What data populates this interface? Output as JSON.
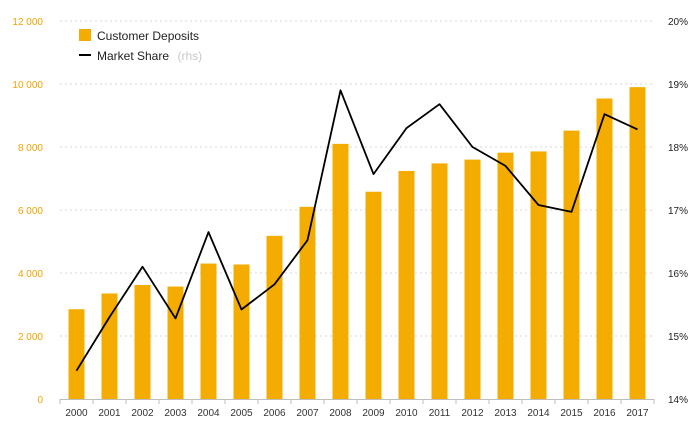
{
  "chart_data": {
    "type": "bar+line",
    "categories": [
      "2000",
      "2001",
      "2002",
      "2003",
      "2004",
      "2005",
      "2006",
      "2007",
      "2008",
      "2009",
      "2010",
      "2011",
      "2012",
      "2013",
      "2014",
      "2015",
      "2016",
      "2017"
    ],
    "series": [
      {
        "name": "Customer Deposits",
        "type": "bar",
        "axis": "left",
        "color": "#f5ac00",
        "values": [
          2850,
          3350,
          3620,
          3570,
          4300,
          4270,
          5180,
          6100,
          8100,
          6580,
          7240,
          7480,
          7600,
          7820,
          7860,
          8520,
          9540,
          9900
        ]
      },
      {
        "name": "Market Share",
        "suffix": "(rhs)",
        "type": "line",
        "axis": "right",
        "color": "#000000",
        "values": [
          14.45,
          15.3,
          16.1,
          15.28,
          16.65,
          15.42,
          15.82,
          16.52,
          18.9,
          17.57,
          18.3,
          18.68,
          18.0,
          17.7,
          17.08,
          16.97,
          18.52,
          18.28
        ]
      }
    ],
    "y_left": {
      "min": 0,
      "max": 12000,
      "ticks": [
        "0",
        "2 000",
        "4 000",
        "6 000",
        "8 000",
        "10 000",
        "12 000"
      ],
      "color": "#f0a400"
    },
    "y_right": {
      "min": 14,
      "max": 20,
      "ticks": [
        "14%",
        "15%",
        "16%",
        "17%",
        "18%",
        "19%",
        "20%"
      ]
    },
    "grid": true,
    "legend_position": "top-left"
  }
}
